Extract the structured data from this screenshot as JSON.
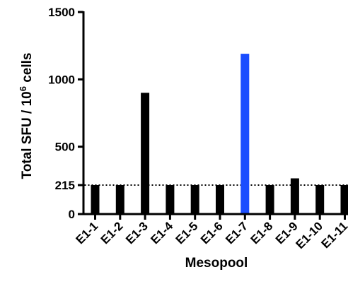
{
  "chart_data": {
    "type": "bar",
    "title": "",
    "xlabel": "Mesopool",
    "ylabel": {
      "main": "Total SFU / 10",
      "superscript": "6",
      "suffix": " cells"
    },
    "categories": [
      "E1-1",
      "E1-2",
      "E1-3",
      "E1-4",
      "E1-5",
      "E1-6",
      "E1-7",
      "E1-8",
      "E1-9",
      "E1-10",
      "E1-11"
    ],
    "values": [
      215,
      215,
      900,
      215,
      215,
      215,
      1190,
      215,
      265,
      215,
      215
    ],
    "bar_colors": [
      "#000000",
      "#000000",
      "#000000",
      "#000000",
      "#000000",
      "#000000",
      "#1a4dff",
      "#000000",
      "#000000",
      "#000000",
      "#000000"
    ],
    "ylim": [
      0,
      1500
    ],
    "y_ticks": [
      0,
      215,
      500,
      1000,
      1500
    ],
    "threshold": {
      "value": 215,
      "style": "dotted"
    },
    "grid": false,
    "legend": "none"
  }
}
